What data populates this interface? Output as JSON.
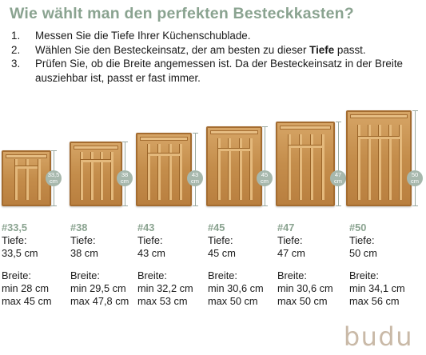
{
  "title": "Wie wählt man den perfekten Besteckkasten?",
  "steps": [
    {
      "num": "1.",
      "text": "Messen Sie die Tiefe Ihrer Küchenschublade."
    },
    {
      "num": "2.",
      "text_before": "Wählen Sie den Besteckeinsatz, der am besten zu dieser ",
      "text_bold": "Tiefe",
      "text_after": " passt."
    },
    {
      "num": "3.",
      "text": "Prüfen Sie, ob die Breite angemessen ist. Da der Besteckeinsatz in der Breite ausziehbar ist, passt er fast immer."
    }
  ],
  "products": [
    {
      "code": "#33,5",
      "depth_label": "Tiefe:",
      "depth": "33,5 cm",
      "width_label": "Breite:",
      "min": "min 28 cm",
      "max": "max 45 cm",
      "badge_value": "33,5",
      "badge_unit": "cm",
      "slots": 4
    },
    {
      "code": "#38",
      "depth_label": "Tiefe:",
      "depth": "38 cm",
      "width_label": "Breite:",
      "min": "min 29,5 cm",
      "max": "max 47,8 cm",
      "badge_value": "38",
      "badge_unit": "cm",
      "slots": 5
    },
    {
      "code": "#43",
      "depth_label": "Tiefe:",
      "depth": "43 cm",
      "width_label": "Breite:",
      "min": "min 32,2 cm",
      "max": "max 53 cm",
      "badge_value": "43",
      "badge_unit": "cm",
      "slots": 5
    },
    {
      "code": "#45",
      "depth_label": "Tiefe:",
      "depth": "45 cm",
      "width_label": "Breite:",
      "min": "min 30,6 cm",
      "max": "max 50 cm",
      "badge_value": "45",
      "badge_unit": "cm",
      "slots": 5
    },
    {
      "code": "#47",
      "depth_label": "Tiefe:",
      "depth": "47 cm",
      "width_label": "Breite:",
      "min": "min 30,6 cm",
      "max": "max 50 cm",
      "badge_value": "47",
      "badge_unit": "cm",
      "slots": 5
    },
    {
      "code": "#50",
      "depth_label": "Tiefe:",
      "depth": "50 cm",
      "width_label": "Breite:",
      "min": "min 34,1 cm",
      "max": "max 56 cm",
      "badge_value": "50",
      "badge_unit": "cm",
      "slots": 6
    }
  ],
  "brand": "budu",
  "colors": {
    "accent": "#8aa390",
    "wood": "#c48d4b",
    "badge": "#a7b8ad",
    "logo": "#c9b9a7"
  }
}
